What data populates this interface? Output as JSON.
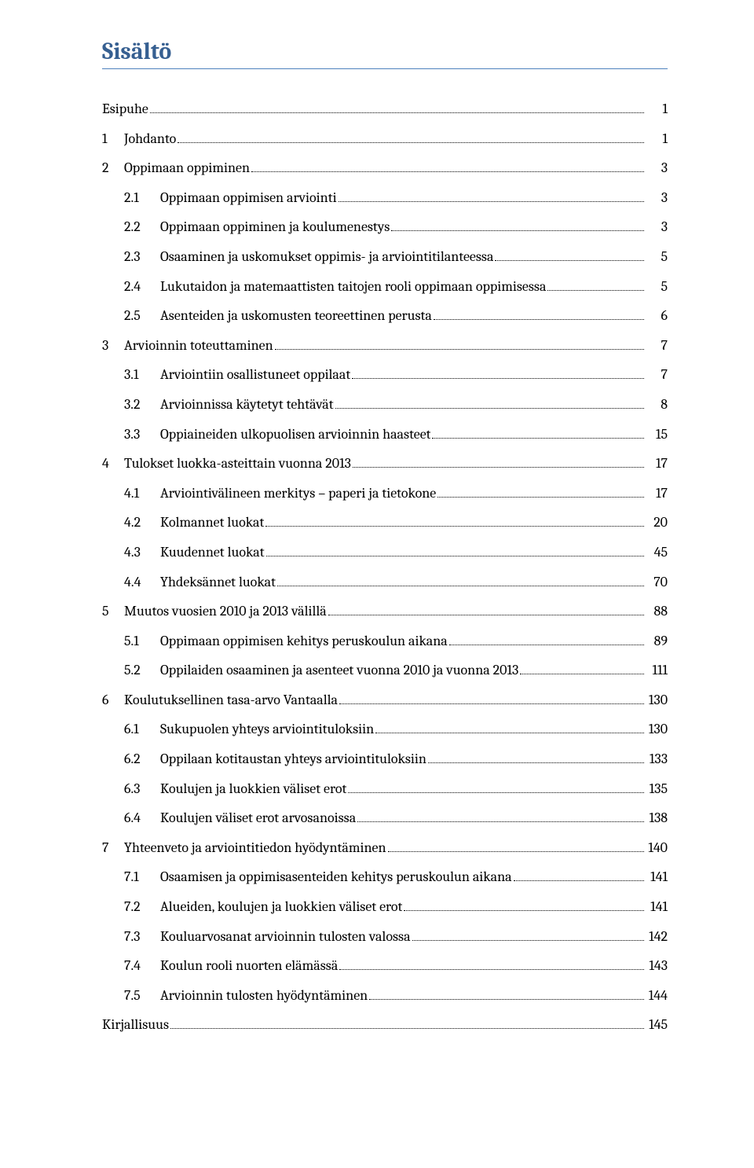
{
  "title": "Sisältö",
  "colors": {
    "heading": "#365f91",
    "underline": "#4f81bd",
    "text": "#000000",
    "background": "#ffffff"
  },
  "toc": [
    {
      "level": 0,
      "num": "",
      "label": "Esipuhe",
      "page": "1",
      "no_num": true
    },
    {
      "level": 0,
      "num": "1",
      "label": "Johdanto",
      "page": "1"
    },
    {
      "level": 0,
      "num": "2",
      "label": "Oppimaan oppiminen",
      "page": "3"
    },
    {
      "level": 1,
      "num": "2.1",
      "label": "Oppimaan oppimisen arviointi",
      "page": "3"
    },
    {
      "level": 1,
      "num": "2.2",
      "label": "Oppimaan oppiminen ja koulumenestys",
      "page": "3"
    },
    {
      "level": 1,
      "num": "2.3",
      "label": "Osaaminen ja uskomukset oppimis- ja arviointitilanteessa",
      "page": "5"
    },
    {
      "level": 1,
      "num": "2.4",
      "label": "Lukutaidon ja matemaattisten taitojen rooli oppimaan oppimisessa",
      "page": "5"
    },
    {
      "level": 1,
      "num": "2.5",
      "label": "Asenteiden ja uskomusten teoreettinen perusta",
      "page": "6"
    },
    {
      "level": 0,
      "num": "3",
      "label": "Arvioinnin toteuttaminen",
      "page": "7"
    },
    {
      "level": 1,
      "num": "3.1",
      "label": "Arviointiin osallistuneet oppilaat",
      "page": "7"
    },
    {
      "level": 1,
      "num": "3.2",
      "label": "Arvioinnissa käytetyt tehtävät",
      "page": "8"
    },
    {
      "level": 1,
      "num": "3.3",
      "label": "Oppiaineiden ulkopuolisen arvioinnin haasteet",
      "page": "15"
    },
    {
      "level": 0,
      "num": "4",
      "label": "Tulokset luokka-asteittain vuonna 2013",
      "page": "17"
    },
    {
      "level": 1,
      "num": "4.1",
      "label": "Arviointivälineen merkitys – paperi ja tietokone",
      "page": "17"
    },
    {
      "level": 1,
      "num": "4.2",
      "label": "Kolmannet luokat",
      "page": "20"
    },
    {
      "level": 1,
      "num": "4.3",
      "label": "Kuudennet luokat",
      "page": "45"
    },
    {
      "level": 1,
      "num": "4.4",
      "label": "Yhdeksännet luokat",
      "page": "70"
    },
    {
      "level": 0,
      "num": "5",
      "label": "Muutos vuosien 2010 ja 2013 välillä",
      "page": "88"
    },
    {
      "level": 1,
      "num": "5.1",
      "label": "Oppimaan oppimisen kehitys peruskoulun aikana",
      "page": "89"
    },
    {
      "level": 1,
      "num": "5.2",
      "label": "Oppilaiden osaaminen ja asenteet vuonna 2010 ja vuonna 2013",
      "page": "111"
    },
    {
      "level": 0,
      "num": "6",
      "label": "Koulutuksellinen tasa-arvo Vantaalla",
      "page": "130"
    },
    {
      "level": 1,
      "num": "6.1",
      "label": "Sukupuolen yhteys arviointituloksiin",
      "page": "130"
    },
    {
      "level": 1,
      "num": "6.2",
      "label": "Oppilaan kotitaustan yhteys arviointituloksiin",
      "page": "133"
    },
    {
      "level": 1,
      "num": "6.3",
      "label": "Koulujen ja luokkien väliset erot",
      "page": "135"
    },
    {
      "level": 1,
      "num": "6.4",
      "label": "Koulujen väliset erot arvosanoissa",
      "page": "138"
    },
    {
      "level": 0,
      "num": "7",
      "label": "Yhteenveto ja arviointitiedon hyödyntäminen",
      "page": "140"
    },
    {
      "level": 1,
      "num": "7.1",
      "label": "Osaamisen ja oppimisasenteiden kehitys peruskoulun aikana",
      "page": "141"
    },
    {
      "level": 1,
      "num": "7.2",
      "label": "Alueiden, koulujen ja luokkien väliset erot",
      "page": "141"
    },
    {
      "level": 1,
      "num": "7.3",
      "label": "Kouluarvosanat arvioinnin tulosten valossa",
      "page": "142"
    },
    {
      "level": 1,
      "num": "7.4",
      "label": "Koulun rooli nuorten elämässä",
      "page": "143"
    },
    {
      "level": 1,
      "num": "7.5",
      "label": "Arvioinnin tulosten hyödyntäminen",
      "page": "144"
    },
    {
      "level": 0,
      "num": "",
      "label": "Kirjallisuus",
      "page": "145",
      "no_num": true
    }
  ]
}
